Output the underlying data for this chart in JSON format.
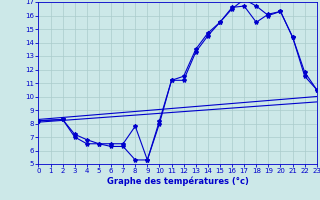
{
  "xlabel": "Graphe des températures (°c)",
  "bg_color": "#cce8e8",
  "line_color": "#0000cc",
  "xlim": [
    0,
    23
  ],
  "ylim": [
    5,
    17
  ],
  "xticks": [
    0,
    1,
    2,
    3,
    4,
    5,
    6,
    7,
    8,
    9,
    10,
    11,
    12,
    13,
    14,
    15,
    16,
    17,
    18,
    19,
    20,
    21,
    22,
    23
  ],
  "yticks": [
    5,
    6,
    7,
    8,
    9,
    10,
    11,
    12,
    13,
    14,
    15,
    16,
    17
  ],
  "trend1_x": [
    0,
    23
  ],
  "trend1_y": [
    8.3,
    10.0
  ],
  "trend2_x": [
    0,
    23
  ],
  "trend2_y": [
    8.1,
    9.6
  ],
  "curve1_x": [
    0,
    2,
    3,
    4,
    5,
    6,
    7,
    8,
    9,
    10,
    11,
    12,
    13,
    14,
    15,
    16,
    17,
    18,
    19,
    20,
    21,
    22,
    23
  ],
  "curve1_y": [
    8.2,
    8.3,
    7.0,
    6.5,
    6.5,
    6.3,
    6.3,
    5.3,
    5.3,
    8.0,
    11.2,
    11.2,
    13.3,
    14.5,
    15.5,
    16.5,
    17.2,
    16.7,
    16.0,
    16.3,
    14.4,
    11.5,
    10.5
  ],
  "curve2_x": [
    0,
    2,
    3,
    4,
    5,
    6,
    7,
    8,
    9,
    10,
    11,
    12,
    13,
    14,
    15,
    16,
    17,
    18,
    19,
    20,
    21,
    22,
    23
  ],
  "curve2_y": [
    8.2,
    8.3,
    7.2,
    6.8,
    6.5,
    6.5,
    6.5,
    7.8,
    5.3,
    8.2,
    11.2,
    11.5,
    13.5,
    14.7,
    15.5,
    16.6,
    16.7,
    15.5,
    16.1,
    16.3,
    14.4,
    11.8,
    10.5
  ],
  "xlabel_fontsize": 6,
  "tick_fontsize": 5,
  "linewidth": 0.8,
  "markersize": 3.0
}
